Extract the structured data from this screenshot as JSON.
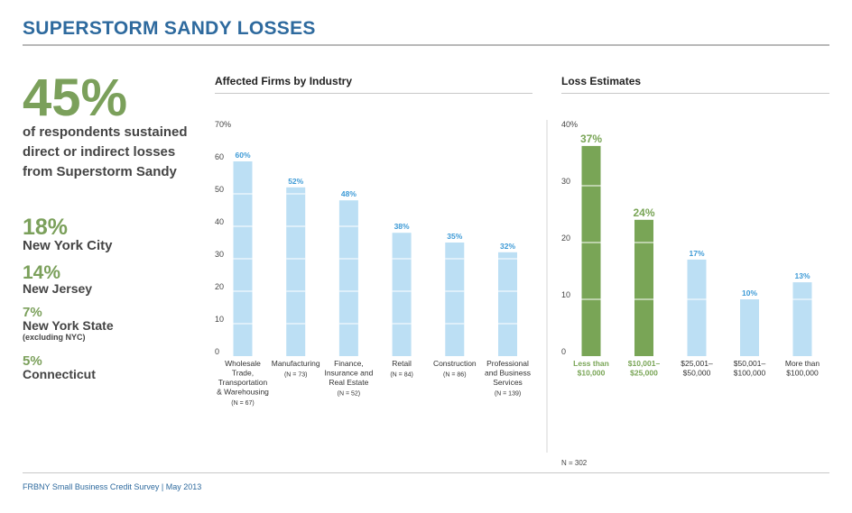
{
  "page": {
    "title": "SUPERSTORM SANDY LOSSES",
    "footer": "FRBNY Small Business Credit Survey  |  May 2013"
  },
  "summary": {
    "headline_pct": "45%",
    "headline_text": "of respondents sustained direct or indirect losses from Superstorm Sandy",
    "stats": [
      {
        "pct": "18%",
        "label": "New York City",
        "sub": ""
      },
      {
        "pct": "14%",
        "label": "New Jersey",
        "sub": ""
      },
      {
        "pct": "7%",
        "label": "New York State",
        "sub": "(excluding NYC)"
      },
      {
        "pct": "5%",
        "label": "Connecticut",
        "sub": ""
      }
    ]
  },
  "colors": {
    "title_blue": "#2e6a9e",
    "accent_green": "#7ba05b",
    "bar_light_blue": "#bcdff4",
    "bar_green": "#79a556",
    "label_blue": "#3d9ad6"
  },
  "chart_data": [
    {
      "type": "bar",
      "title": "Affected Firms by Industry",
      "categories": [
        "Wholesale Trade, Transportation & Warehousing",
        "Manufacturing",
        "Finance, Insurance and Real Estate",
        "Retail",
        "Construction",
        "Professional and Business Services"
      ],
      "category_lines": [
        [
          "Wholesale",
          "Trade,",
          "Transportation",
          "& Warehousing"
        ],
        [
          "Manufacturing"
        ],
        [
          "Finance,",
          "Insurance and",
          "Real Estate"
        ],
        [
          "Retail"
        ],
        [
          "Construction"
        ],
        [
          "Professional",
          "and Business",
          "Services"
        ]
      ],
      "sample_sizes": [
        "(N = 67)",
        "(N = 73)",
        "(N = 52)",
        "(N = 84)",
        "(N = 86)",
        "(N = 139)"
      ],
      "values": [
        60,
        52,
        48,
        38,
        35,
        32
      ],
      "data_labels": [
        "60%",
        "52%",
        "48%",
        "38%",
        "35%",
        "32%"
      ],
      "bar_colors": [
        "light",
        "light",
        "light",
        "light",
        "light",
        "light"
      ],
      "ylim": [
        0,
        70
      ],
      "yticks": [
        0,
        10,
        20,
        30,
        40,
        50,
        60,
        70
      ],
      "ytick_labels": [
        "0",
        "10",
        "20",
        "30",
        "40",
        "50",
        "60",
        "70%"
      ],
      "grid": false
    },
    {
      "type": "bar",
      "title": "Loss Estimates",
      "categories": [
        "Less than $10,000",
        "$10,001–$25,000",
        "$25,001–$50,000",
        "$50,001–$100,000",
        "More than $100,000"
      ],
      "category_lines": [
        [
          "Less than",
          "$10,000"
        ],
        [
          "$10,001–",
          "$25,000"
        ],
        [
          "$25,001–",
          "$50,000"
        ],
        [
          "$50,001–",
          "$100,000"
        ],
        [
          "More than",
          "$100,000"
        ]
      ],
      "values": [
        37,
        24,
        17,
        10,
        13
      ],
      "data_labels": [
        "37%",
        "24%",
        "17%",
        "10%",
        "13%"
      ],
      "bar_colors": [
        "green",
        "green",
        "light",
        "light",
        "light"
      ],
      "ylim": [
        0,
        40
      ],
      "yticks": [
        0,
        10,
        20,
        30,
        40
      ],
      "ytick_labels": [
        "0",
        "10",
        "20",
        "30",
        "40%"
      ],
      "note": "N = 302",
      "grid": false
    }
  ]
}
